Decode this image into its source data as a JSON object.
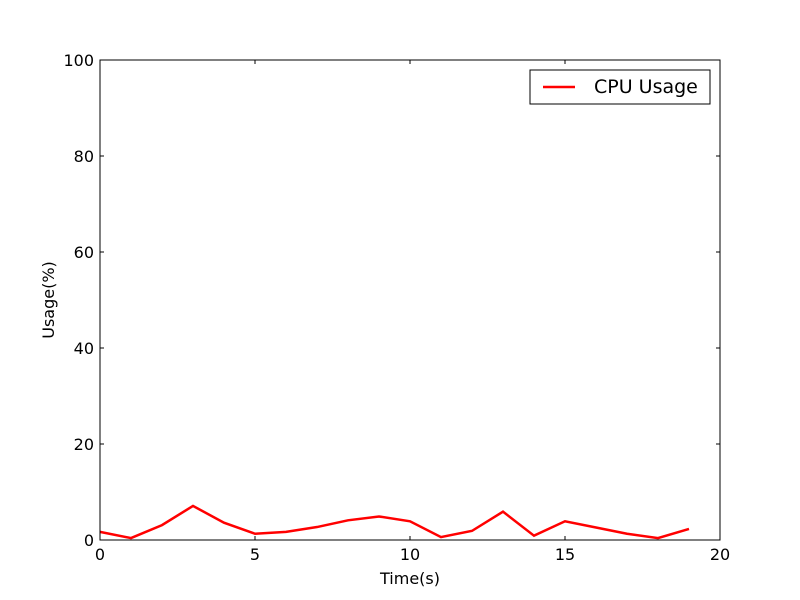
{
  "chart_data": {
    "type": "line",
    "title": "",
    "xlabel": "Time(s)",
    "ylabel": "Usage(%)",
    "xlim": [
      0,
      20
    ],
    "ylim": [
      0,
      100
    ],
    "xticks": [
      0,
      5,
      10,
      15,
      20
    ],
    "yticks": [
      0,
      20,
      40,
      60,
      80,
      100
    ],
    "xtick_labels": [
      "0",
      "5",
      "10",
      "15",
      "20"
    ],
    "ytick_labels": [
      "0",
      "20",
      "40",
      "60",
      "80",
      "100"
    ],
    "grid": false,
    "legend_position": "top-right",
    "series": [
      {
        "name": "CPU Usage",
        "color": "#ff0000",
        "x": [
          0,
          1,
          2,
          3,
          4,
          5,
          6,
          7,
          8,
          9,
          10,
          11,
          12,
          13,
          14,
          15,
          16,
          17,
          18,
          19
        ],
        "values": [
          1.7,
          0.4,
          3.1,
          7.1,
          3.6,
          1.3,
          1.7,
          2.7,
          4.1,
          4.9,
          3.9,
          0.6,
          1.9,
          5.9,
          0.9,
          3.9,
          2.6,
          1.3,
          0.4,
          2.3
        ]
      }
    ]
  }
}
